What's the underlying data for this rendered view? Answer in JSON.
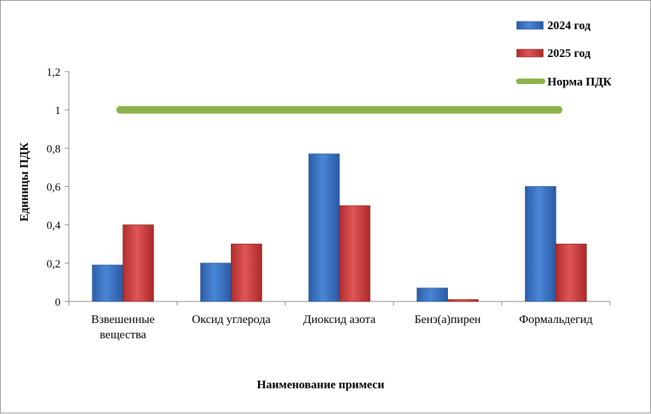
{
  "chart_data": {
    "type": "bar",
    "categories": [
      [
        "Взвешенные",
        "вещества"
      ],
      [
        "Оксид углерода"
      ],
      [
        "Диоксид азота"
      ],
      [
        "Бенз(а)пирен"
      ],
      [
        "Формальдегид"
      ]
    ],
    "series": [
      {
        "name": "2024 год",
        "color": "#3a73c8",
        "values": [
          0.19,
          0.2,
          0.77,
          0.07,
          0.6
        ]
      },
      {
        "name": "2025 год",
        "color": "#d24343",
        "values": [
          0.4,
          0.3,
          0.5,
          0.01,
          0.3
        ]
      }
    ],
    "reference_line": {
      "name": "Норма ПДК",
      "color": "#8db34d",
      "value": 1
    },
    "yticks": [
      "0",
      "0,2",
      "0,4",
      "0,6",
      "0,8",
      "1",
      "1,2"
    ],
    "ylim": [
      0,
      1.2
    ],
    "xlabel": "Наименование примеси",
    "ylabel": "Единицы ПДК",
    "legend_position": "top-right",
    "grid": false
  }
}
